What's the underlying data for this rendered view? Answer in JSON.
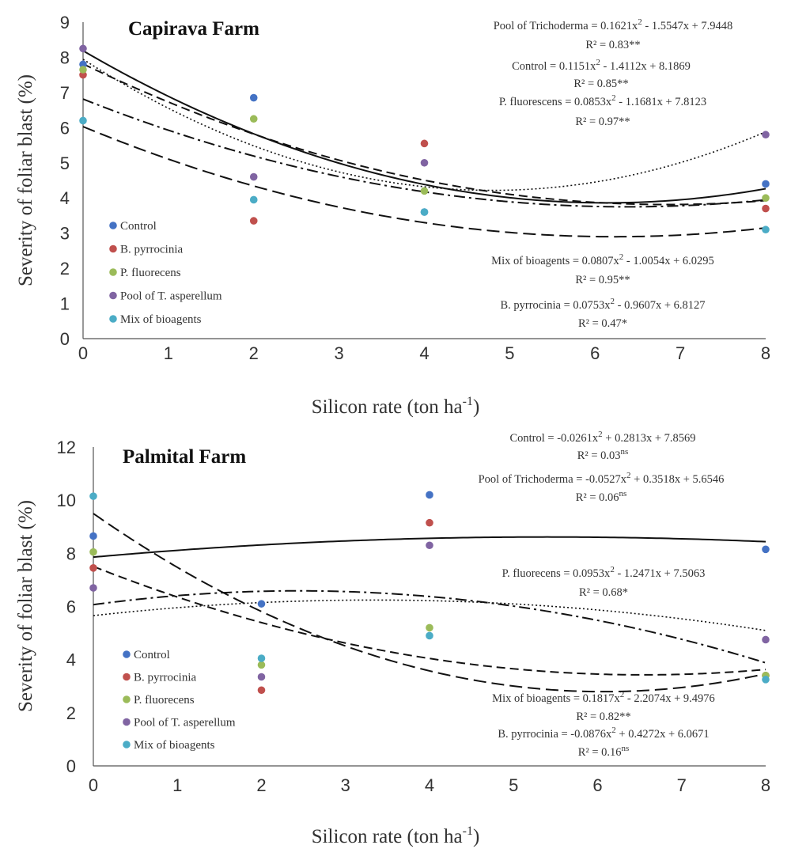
{
  "chart_data": [
    {
      "type": "scatter",
      "title": "Capirava Farm",
      "xlabel": "Silicon rate (ton ha",
      "xlabel_sup": "-1",
      "xlabel_end": ")",
      "ylabel": "Severity of foliar blast (%)",
      "xlim": [
        0,
        8
      ],
      "ylim": [
        0,
        9
      ],
      "xticks": [
        0,
        1,
        2,
        3,
        4,
        5,
        6,
        7,
        8
      ],
      "yticks": [
        0,
        1,
        2,
        3,
        4,
        5,
        6,
        7,
        8,
        9
      ],
      "x": [
        0,
        2,
        4,
        8
      ],
      "series": [
        {
          "name": "Control",
          "color": "#4472c4",
          "values": [
            7.8,
            6.85,
            3.6,
            4.4
          ],
          "fit": [
            0.1151,
            -1.4112,
            8.1869
          ],
          "fit_style": "solid"
        },
        {
          "name": "B. pyrrocinia",
          "color": "#c0504d",
          "values": [
            7.5,
            3.35,
            5.55,
            3.7
          ],
          "fit": [
            0.0753,
            -0.9607,
            6.8127
          ],
          "fit_style": "dashdot"
        },
        {
          "name": "P. fluorecens",
          "color": "#9bbb59",
          "values": [
            7.65,
            6.25,
            4.2,
            4.0
          ],
          "fit": [
            0.0853,
            -1.1681,
            7.8123
          ],
          "fit_style": "dashed"
        },
        {
          "name": "Pool of T. asperellum",
          "color": "#8064a2",
          "values": [
            8.25,
            4.6,
            5.0,
            5.8
          ],
          "fit": [
            0.1621,
            -1.5547,
            7.9448
          ],
          "fit_style": "dotted"
        },
        {
          "name": "Mix of bioagents",
          "color": "#4bacc6",
          "values": [
            6.2,
            3.95,
            3.6,
            3.1
          ],
          "fit": [
            0.0807,
            -1.0054,
            6.0295
          ],
          "fit_style": "longdash"
        }
      ],
      "annotations": [
        {
          "line1_a": "Pool of Trichoderma = 0.1621x",
          "line1_b": "2",
          "line1_c": " - 1.5547x + 7.9448",
          "line2_a": "R² = 0.83**",
          "line2_b": ""
        },
        {
          "line1_a": "Control = 0.1151x",
          "line1_b": "2",
          "line1_c": " - 1.4112x + 8.1869",
          "line2_a": "R² = 0.85**",
          "line2_b": ""
        },
        {
          "line1_a": "P. fluorescens = 0.0853x",
          "line1_b": "2",
          "line1_c": " - 1.1681x + 7.8123",
          "line2_a": "R² = 0.97**",
          "line2_b": ""
        },
        {
          "line1_a": "Mix of bioagents = 0.0807x",
          "line1_b": "2",
          "line1_c": " - 1.0054x + 6.0295",
          "line2_a": "R² = 0.95**",
          "line2_b": ""
        },
        {
          "line1_a": "B. pyrrocinia = 0.0753x",
          "line1_b": "2",
          "line1_c": " - 0.9607x + 6.8127",
          "line2_a": "R² = 0.47*",
          "line2_b": ""
        }
      ]
    },
    {
      "type": "scatter",
      "title": "Palmital Farm",
      "xlabel": "Silicon rate (ton ha",
      "xlabel_sup": "-1",
      "xlabel_end": ")",
      "ylabel": "Severity of foliar blast (%)",
      "xlim": [
        0,
        8
      ],
      "ylim": [
        0,
        12
      ],
      "xticks": [
        0,
        1,
        2,
        3,
        4,
        5,
        6,
        7,
        8
      ],
      "yticks": [
        0,
        2,
        4,
        6,
        8,
        10,
        12
      ],
      "x": [
        0,
        2,
        4,
        8
      ],
      "series": [
        {
          "name": "Control",
          "color": "#4472c4",
          "values": [
            8.65,
            6.1,
            10.2,
            8.15
          ],
          "fit": [
            -0.0261,
            0.2813,
            7.8569
          ],
          "fit_style": "solid"
        },
        {
          "name": "B. pyrrocinia",
          "color": "#c0504d",
          "values": [
            7.45,
            2.85,
            9.15,
            3.4
          ],
          "fit": [
            -0.0876,
            0.4272,
            6.0671
          ],
          "fit_style": "dashdot"
        },
        {
          "name": "P. fluorecens",
          "color": "#9bbb59",
          "values": [
            8.05,
            3.8,
            5.2,
            3.4
          ],
          "fit": [
            0.0953,
            -1.2471,
            7.5063
          ],
          "fit_style": "dashed"
        },
        {
          "name": "Pool of T. asperellum",
          "color": "#8064a2",
          "values": [
            6.7,
            3.35,
            8.3,
            4.75
          ],
          "fit": [
            -0.0527,
            0.3518,
            5.6546
          ],
          "fit_style": "dotted"
        },
        {
          "name": "Mix of bioagents",
          "color": "#4bacc6",
          "values": [
            10.15,
            4.05,
            4.9,
            3.25
          ],
          "fit": [
            0.1817,
            -2.2074,
            9.4976
          ],
          "fit_style": "longdash"
        }
      ],
      "annotations": [
        {
          "line1_a": "Control = -0.0261x",
          "line1_b": "2",
          "line1_c": " + 0.2813x + 7.8569",
          "line2_a": "R² = 0.03",
          "line2_b": "ns"
        },
        {
          "line1_a": "Pool of Trichoderma = -0.0527x",
          "line1_b": "2",
          "line1_c": " + 0.3518x + 5.6546",
          "line2_a": "R² = 0.06",
          "line2_b": "ns"
        },
        {
          "line1_a": "P. fluorecens = 0.0953x",
          "line1_b": "2",
          "line1_c": " - 1.2471x + 7.5063",
          "line2_a": "R² = 0.68*",
          "line2_b": ""
        },
        {
          "line1_a": "Mix of bioagents = 0.1817x",
          "line1_b": "2",
          "line1_c": " - 2.2074x + 9.4976",
          "line2_a": "R² = 0.82**",
          "line2_b": ""
        },
        {
          "line1_a": "B. pyrrocinia = -0.0876x",
          "line1_b": "2",
          "line1_c": " + 0.4272x + 6.0671",
          "line2_a": "R² = 0.16",
          "line2_b": "ns"
        }
      ]
    }
  ]
}
